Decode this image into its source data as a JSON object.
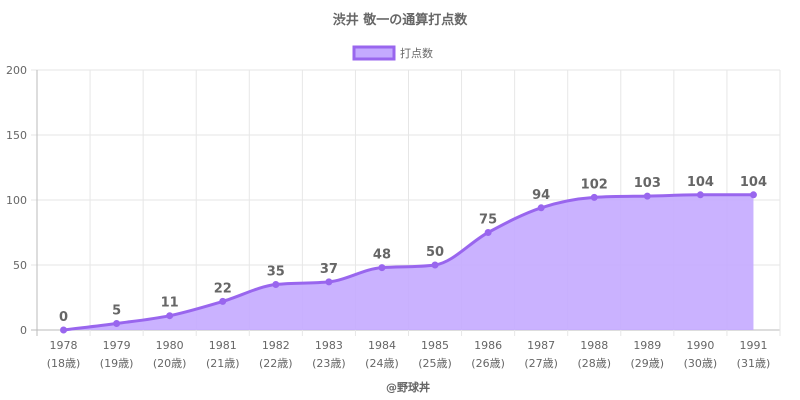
{
  "chart_data": {
    "type": "area",
    "title": "渋井 敬一の通算打点数",
    "legend": {
      "label": "打点数",
      "position": "top"
    },
    "categories": [
      "1978",
      "1979",
      "1980",
      "1981",
      "1982",
      "1983",
      "1984",
      "1985",
      "1986",
      "1987",
      "1988",
      "1989",
      "1990",
      "1991"
    ],
    "ages": [
      "(18歳)",
      "(19歳)",
      "(20歳)",
      "(21歳)",
      "(22歳)",
      "(23歳)",
      "(24歳)",
      "(25歳)",
      "(26歳)",
      "(27歳)",
      "(28歳)",
      "(29歳)",
      "(30歳)",
      "(31歳)"
    ],
    "series": [
      {
        "name": "打点数",
        "values": [
          0,
          5,
          11,
          22,
          35,
          37,
          48,
          50,
          75,
          94,
          102,
          103,
          104,
          104
        ]
      }
    ],
    "ylim": [
      0,
      200
    ],
    "yticks": [
      0,
      50,
      100,
      150,
      200
    ],
    "grid": true,
    "colors": {
      "line": "#9966ee",
      "fill": "#c4aaff",
      "grid": "#e6e6e6",
      "text": "#666666"
    }
  },
  "credit": "@野球丼"
}
